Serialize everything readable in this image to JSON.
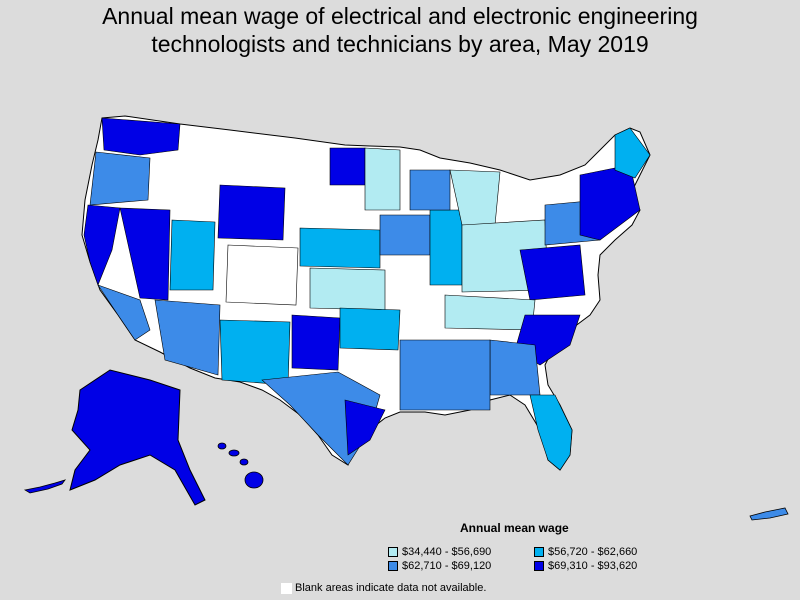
{
  "title_line1": "Annual mean wage of electrical and electronic engineering",
  "title_line2": "technologists and technicians by area, May 2019",
  "legend": {
    "title": "Annual mean wage",
    "items": [
      {
        "label": "$34,440 - $56,690",
        "color": "#b2ebf2"
      },
      {
        "label": "$56,720 - $62,660",
        "color": "#00b0f0"
      },
      {
        "label": "$62,710 - $69,120",
        "color": "#3d8be8"
      },
      {
        "label": "$69,310 - $93,620",
        "color": "#0000e6"
      }
    ]
  },
  "note": "Blank areas indicate data not available.",
  "colors": {
    "background": "#dcdcdc",
    "no_data": "#ffffff",
    "border": "#000000"
  }
}
